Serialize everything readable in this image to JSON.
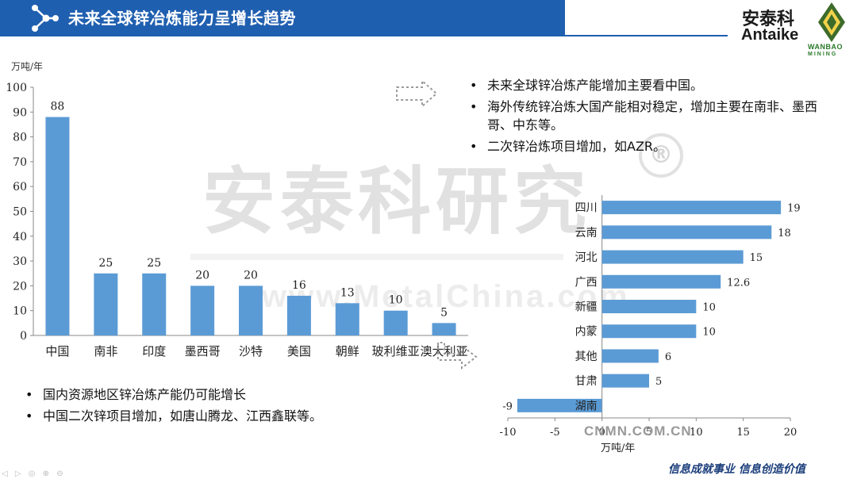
{
  "header": {
    "title": "未来全球锌冶炼能力呈增长趋势"
  },
  "logo": {
    "cn": "安泰科",
    "en": "Antaike",
    "partner": "WANBAO",
    "partner_sub": "MINING"
  },
  "watermark": {
    "main": "安泰科研究",
    "site": "www.MetalChina.com",
    "registered": "®"
  },
  "bullets_top": [
    "未来全球锌冶炼产能增加主要看中国。",
    "海外传统锌冶炼大国产能相对稳定，增加主要在南非、墨西哥、中东等。",
    "二次锌冶炼项目增加，如AZR。"
  ],
  "bullets_bottom": [
    "国内资源地区锌冶炼产能仍可能增长",
    "中国二次锌项目增加，如唐山腾龙、江西鑫联等。"
  ],
  "footer": {
    "source": "CNMN.COM.CN",
    "slogan": "信息成就事业  信息创造价值",
    "controls": "◁ ▷ ◎ ⊕ ⊖"
  },
  "colors": {
    "bar": "#5b9bd5",
    "header": "#1f5fb0"
  },
  "chart_data": [
    {
      "type": "bar",
      "ylabel": "万吨/年",
      "categories": [
        "中国",
        "南非",
        "印度",
        "墨西哥",
        "沙特",
        "美国",
        "朝鲜",
        "玻利维亚",
        "澳大利亚"
      ],
      "values": [
        88,
        25,
        25,
        20,
        20,
        16,
        13,
        10,
        5
      ],
      "ylim": [
        0,
        100
      ],
      "yticks": [
        0,
        10,
        20,
        30,
        40,
        50,
        60,
        70,
        80,
        90,
        100
      ],
      "grid": false
    },
    {
      "type": "bar",
      "orientation": "horizontal",
      "xlabel": "万吨/年",
      "categories": [
        "四川",
        "云南",
        "河北",
        "广西",
        "新疆",
        "内蒙",
        "其他",
        "甘肃",
        "湖南"
      ],
      "values": [
        19,
        18,
        15,
        12.6,
        10,
        10,
        6,
        5,
        -9
      ],
      "xlim": [
        -10,
        20
      ],
      "xticks": [
        -10,
        -5,
        0,
        5,
        10,
        15,
        20
      ],
      "grid": false
    }
  ]
}
